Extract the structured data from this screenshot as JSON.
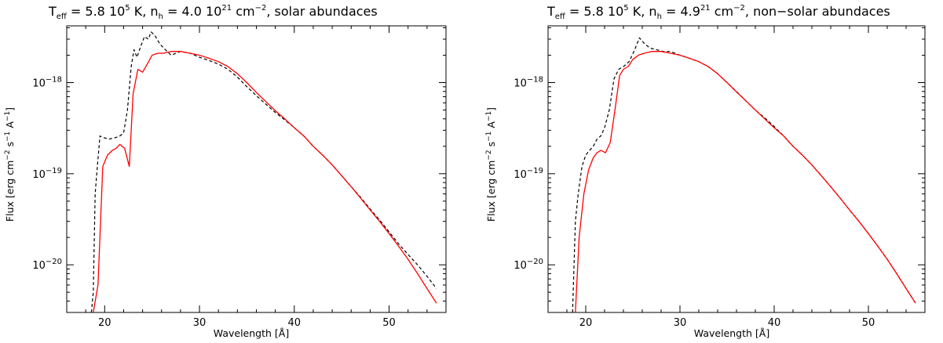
{
  "chart_data": [
    {
      "type": "line",
      "title": {
        "pre": "T",
        "sub1": "eff",
        "mid1": " = 5.8 10",
        "sup1": "5",
        "mid2": " K, n",
        "sub2": "h",
        "mid3": " = 4.0 10",
        "sup2": "21",
        "mid4": " cm",
        "sup3": "−2",
        "post": ", solar abundaces"
      },
      "xlabel": "Wavelength [Å]",
      "ylabel": {
        "pre": "Flux [erg cm",
        "sup1": "−2",
        "mid": " s",
        "sup2": "−1",
        "mid2": " A",
        "sup3": "−1",
        "post": "]"
      },
      "xlim": [
        16,
        56
      ],
      "ylim": [
        3e-21,
        4.2e-18
      ],
      "yscale": "log",
      "xticks": [
        20,
        30,
        40,
        50
      ],
      "yticks": [
        {
          "base": "10",
          "exp": "−18",
          "value": 1e-18
        },
        {
          "base": "10",
          "exp": "−19",
          "value": 1e-19
        },
        {
          "base": "10",
          "exp": "−20",
          "value": 1e-20
        }
      ],
      "series": [
        {
          "style": "dashed",
          "color": "#000000",
          "x": [
            18.6,
            18.8,
            19.0,
            19.2,
            19.5,
            19.8,
            20.5,
            21.2,
            21.6,
            22.0,
            22.4,
            22.8,
            23.1,
            23.4,
            23.8,
            24.2,
            24.6,
            24.9,
            25.3,
            25.6,
            25.9,
            26.4,
            27.0,
            28.0,
            29.0,
            30.0,
            31.0,
            32.0,
            33.0,
            34.0,
            35.0,
            36.0,
            37.0,
            38.0,
            39.0,
            40.0,
            41.0,
            42.0,
            43.0,
            44.0,
            45.0,
            46.0,
            47.0,
            48.0,
            49.0,
            50.0,
            51.0,
            52.0,
            53.0,
            54.0,
            55.0
          ],
          "y": [
            3e-21,
            5e-21,
            6e-20,
            1.1e-19,
            2.6e-19,
            2.5e-19,
            2.4e-19,
            2.5e-19,
            2.6e-19,
            2.8e-19,
            5e-19,
            1.5e-18,
            2.3e-18,
            1.9e-18,
            2.5e-18,
            3.2e-18,
            3e-18,
            3.6e-18,
            3.3e-18,
            2.9e-18,
            2.6e-18,
            2.3e-18,
            2e-18,
            2.2e-18,
            2.1e-18,
            1.9e-18,
            1.75e-18,
            1.6e-18,
            1.4e-18,
            1.15e-18,
            9e-19,
            7.2e-19,
            5.8e-19,
            4.7e-19,
            3.9e-19,
            3.2e-19,
            2.6e-19,
            2e-19,
            1.6e-19,
            1.25e-19,
            9.5e-20,
            7.2e-20,
            5.5e-20,
            4.1e-20,
            3.1e-20,
            2.3e-20,
            1.7e-20,
            1.3e-20,
            1e-20,
            7.5e-21,
            5.5e-21
          ]
        },
        {
          "style": "solid",
          "color": "#ff0000",
          "x": [
            18.8,
            19.3,
            19.8,
            20.3,
            20.8,
            21.2,
            21.6,
            22.1,
            22.6,
            23.0,
            23.5,
            24.0,
            24.5,
            25.0,
            25.6,
            26.2,
            27.0,
            28.0,
            29.0,
            30.0,
            31.0,
            32.0,
            33.0,
            34.0,
            35.0,
            36.0,
            37.0,
            38.0,
            39.0,
            40.0,
            41.0,
            42.0,
            43.0,
            44.0,
            45.0,
            46.0,
            47.0,
            48.0,
            49.0,
            50.0,
            51.0,
            52.0,
            53.0,
            54.0,
            55.0
          ],
          "y": [
            3e-21,
            6e-21,
            1.2e-19,
            1.6e-19,
            1.8e-19,
            1.9e-19,
            2.1e-19,
            1.9e-19,
            1.2e-19,
            7.5e-19,
            1.4e-18,
            1.3e-18,
            1.6e-18,
            2e-18,
            2.1e-18,
            2.1e-18,
            2.2e-18,
            2.2e-18,
            2.1e-18,
            2e-18,
            1.85e-18,
            1.7e-18,
            1.5e-18,
            1.25e-18,
            1e-18,
            7.8e-19,
            6.2e-19,
            4.9e-19,
            4e-19,
            3.2e-19,
            2.6e-19,
            2e-19,
            1.6e-19,
            1.25e-19,
            9.5e-20,
            7.2e-20,
            5.4e-20,
            4e-20,
            3e-20,
            2.2e-20,
            1.6e-20,
            1.15e-20,
            8e-21,
            5.5e-21,
            3.8e-21
          ]
        }
      ]
    },
    {
      "type": "line",
      "title": {
        "pre": "T",
        "sub1": "eff",
        "mid1": " = 5.8 10",
        "sup1": "5",
        "mid2": " K, n",
        "sub2": "h",
        "mid3": " = 4.9",
        "sup2": "21",
        "mid4": " cm",
        "sup3": "−2",
        "post": ", non−solar abundaces"
      },
      "xlabel": "Wavelength [Å]",
      "ylabel": {
        "pre": "Flux [erg cm",
        "sup1": "−2",
        "mid": " s",
        "sup2": "−1",
        "mid2": " A",
        "sup3": "−1",
        "post": "]"
      },
      "xlim": [
        16,
        56
      ],
      "ylim": [
        3e-21,
        4.2e-18
      ],
      "yscale": "log",
      "xticks": [
        20,
        30,
        40,
        50
      ],
      "yticks": [
        {
          "base": "10",
          "exp": "−18",
          "value": 1e-18
        },
        {
          "base": "10",
          "exp": "−19",
          "value": 1e-19
        },
        {
          "base": "10",
          "exp": "−20",
          "value": 1e-20
        }
      ],
      "series": [
        {
          "style": "dashed",
          "color": "#000000",
          "x": [
            18.6,
            18.9,
            19.2,
            19.6,
            20.0,
            20.4,
            20.8,
            21.2,
            21.6,
            22.0,
            22.5,
            23.0,
            23.5,
            24.0,
            24.6,
            25.2,
            25.7,
            26.2,
            26.8,
            27.5,
            28.2,
            29.0,
            30.0,
            31.0,
            32.0,
            33.0,
            34.0,
            35.0,
            36.0,
            37.0,
            38.0,
            39.0,
            40.0,
            41.0,
            42.0,
            43.0,
            44.0,
            45.0,
            46.0,
            47.0,
            48.0,
            49.0,
            50.0,
            51.0,
            52.0,
            53.0,
            54.0,
            55.0
          ],
          "y": [
            3e-21,
            3e-20,
            6e-20,
            1.2e-19,
            1.6e-19,
            1.8e-19,
            2e-19,
            2.4e-19,
            2.6e-19,
            3.2e-19,
            5e-19,
            1.1e-18,
            1.4e-18,
            1.5e-18,
            1.7e-18,
            2.3e-18,
            3.1e-18,
            2.7e-18,
            2.4e-18,
            2.3e-18,
            2.2e-18,
            2.2e-18,
            2e-18,
            1.85e-18,
            1.7e-18,
            1.5e-18,
            1.25e-18,
            1e-18,
            8e-19,
            6.3e-19,
            5e-19,
            4.1e-19,
            3.3e-19,
            2.6e-19,
            2e-19,
            1.6e-19,
            1.25e-19,
            9.5e-20,
            7.2e-20,
            5.4e-20,
            4e-20,
            3e-20,
            2.2e-20,
            1.6e-20,
            1.15e-20,
            8e-21,
            5.5e-21,
            3.8e-21
          ]
        },
        {
          "style": "solid",
          "color": "#ff0000",
          "x": [
            18.9,
            19.3,
            19.8,
            20.3,
            20.8,
            21.2,
            21.6,
            22.1,
            22.6,
            23.1,
            23.6,
            24.0,
            24.5,
            25.0,
            25.6,
            26.2,
            27.0,
            28.0,
            29.0,
            30.0,
            31.0,
            32.0,
            33.0,
            34.0,
            35.0,
            36.0,
            37.0,
            38.0,
            39.0,
            40.0,
            41.0,
            42.0,
            43.0,
            44.0,
            45.0,
            46.0,
            47.0,
            48.0,
            49.0,
            50.0,
            51.0,
            52.0,
            53.0,
            54.0,
            55.0
          ],
          "y": [
            3e-21,
            2e-20,
            6e-20,
            1.1e-19,
            1.5e-19,
            1.7e-19,
            1.8e-19,
            1.7e-19,
            2.2e-19,
            5e-19,
            1.2e-18,
            1.4e-18,
            1.5e-18,
            1.8e-18,
            2e-18,
            2.1e-18,
            2.2e-18,
            2.2e-18,
            2.1e-18,
            2e-18,
            1.85e-18,
            1.7e-18,
            1.5e-18,
            1.25e-18,
            1e-18,
            7.9e-19,
            6.3e-19,
            5e-19,
            4e-19,
            3.2e-19,
            2.6e-19,
            2e-19,
            1.6e-19,
            1.25e-19,
            9.5e-20,
            7.2e-20,
            5.4e-20,
            4e-20,
            3e-20,
            2.2e-20,
            1.6e-20,
            1.15e-20,
            8e-21,
            5.5e-21,
            3.8e-21
          ]
        }
      ]
    }
  ]
}
